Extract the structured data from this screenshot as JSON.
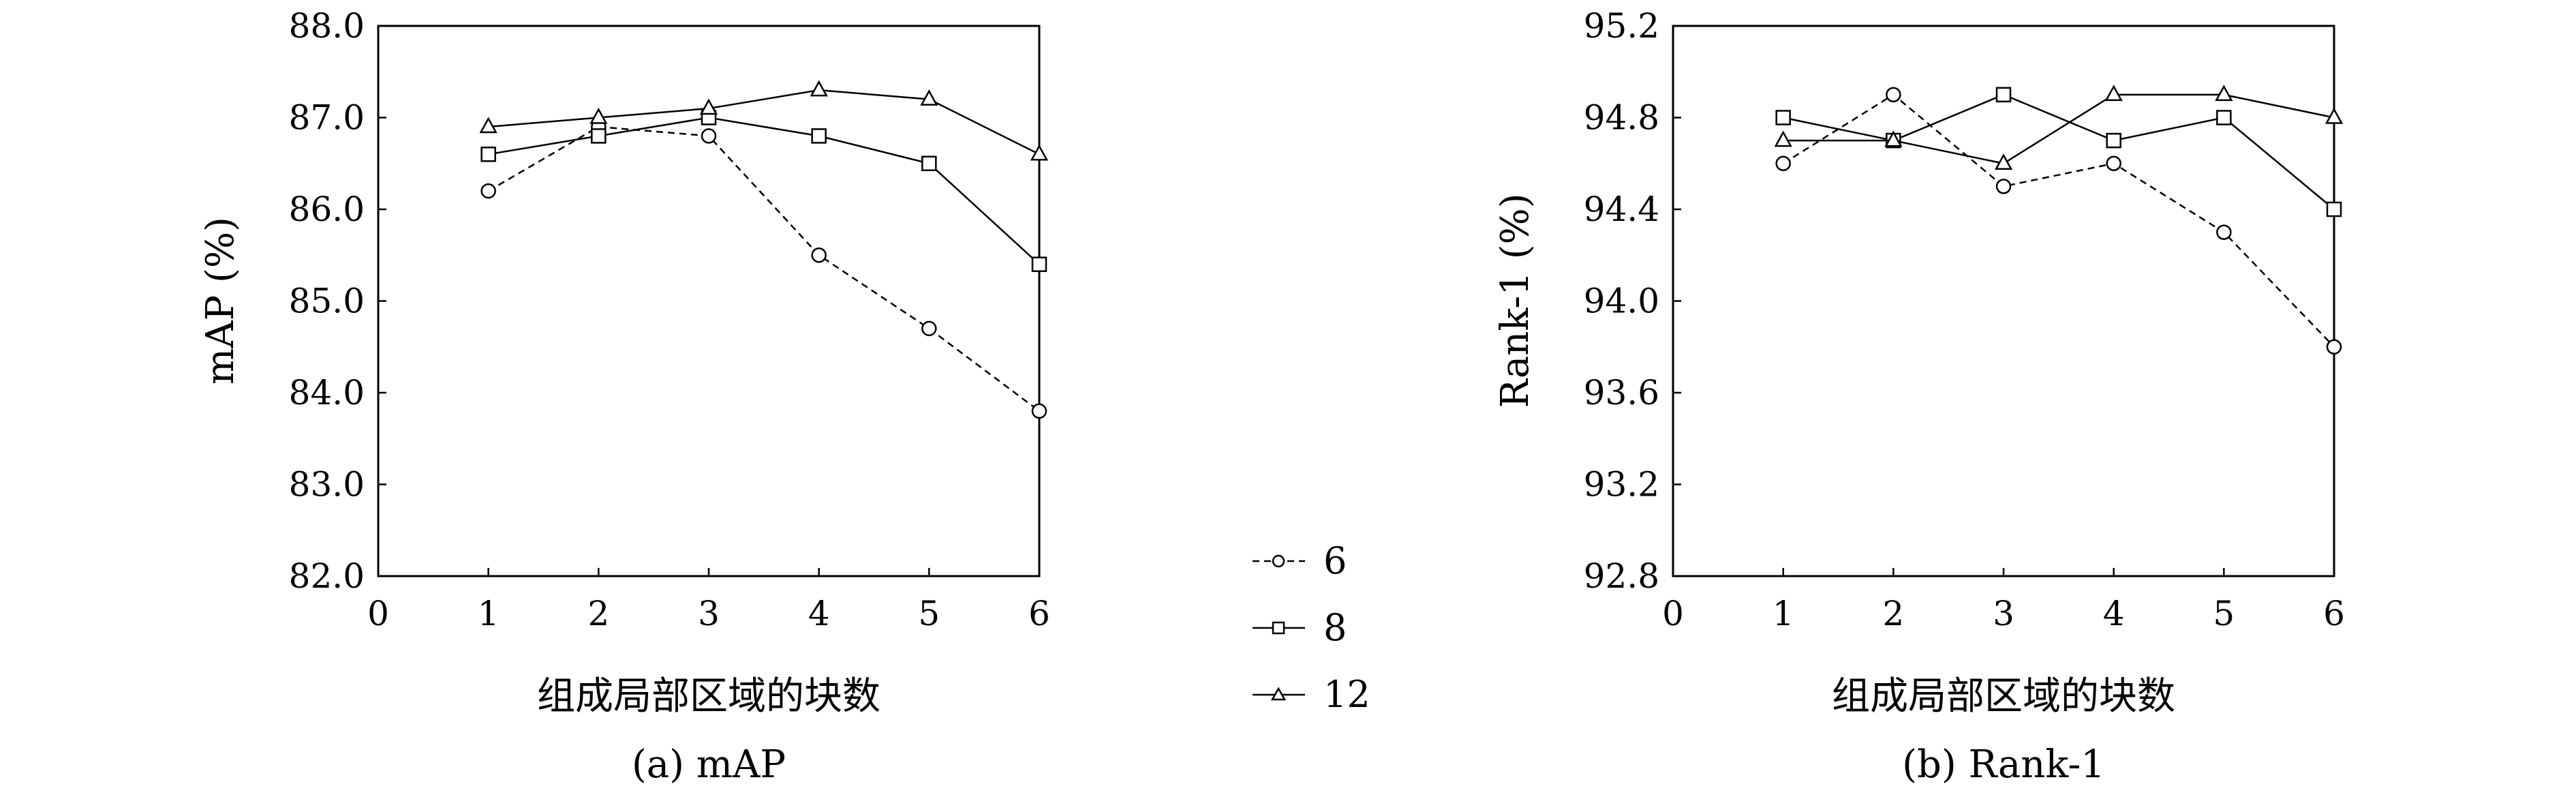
{
  "figure": {
    "legend": {
      "entries": [
        {
          "label": "6",
          "marker": "circle",
          "dash": "dashed"
        },
        {
          "label": "8",
          "marker": "square",
          "dash": "solid"
        },
        {
          "label": "12",
          "marker": "triangle",
          "dash": "solid"
        }
      ],
      "placement": "center, between panels"
    }
  },
  "chart_data": [
    {
      "type": "line",
      "caption": "(a) mAP",
      "xlabel": "组成局部区域的块数",
      "ylabel": "mAP (%)",
      "xlim": [
        0,
        6
      ],
      "ylim": [
        82.0,
        88.0
      ],
      "xticks": [
        "0",
        "1",
        "2",
        "3",
        "4",
        "5",
        "6"
      ],
      "yticks": [
        "82.0",
        "83.0",
        "84.0",
        "85.0",
        "86.0",
        "87.0",
        "88.0"
      ],
      "grid": false,
      "x": [
        1,
        2,
        3,
        4,
        5,
        6
      ],
      "series": [
        {
          "name": "6",
          "marker": "circle",
          "dash": "dashed",
          "values": [
            86.2,
            86.9,
            86.8,
            85.5,
            84.7,
            83.8
          ]
        },
        {
          "name": "8",
          "marker": "square",
          "dash": "solid",
          "values": [
            86.6,
            86.8,
            87.0,
            86.8,
            86.5,
            85.4
          ]
        },
        {
          "name": "12",
          "marker": "triangle",
          "dash": "solid",
          "values": [
            86.9,
            87.0,
            87.1,
            87.3,
            87.2,
            86.6
          ]
        }
      ]
    },
    {
      "type": "line",
      "caption": "(b) Rank-1",
      "xlabel": "组成局部区域的块数",
      "ylabel": "Rank-1 (%)",
      "xlim": [
        0,
        6
      ],
      "ylim": [
        92.8,
        95.2
      ],
      "xticks": [
        "0",
        "1",
        "2",
        "3",
        "4",
        "5",
        "6"
      ],
      "yticks": [
        "92.8",
        "93.2",
        "93.6",
        "94.0",
        "94.4",
        "94.8",
        "95.2"
      ],
      "grid": false,
      "x": [
        1,
        2,
        3,
        4,
        5,
        6
      ],
      "series": [
        {
          "name": "6",
          "marker": "circle",
          "dash": "dashed",
          "values": [
            94.6,
            94.9,
            94.5,
            94.6,
            94.3,
            93.8
          ]
        },
        {
          "name": "8",
          "marker": "square",
          "dash": "solid",
          "values": [
            94.8,
            94.7,
            94.9,
            94.7,
            94.8,
            94.4
          ]
        },
        {
          "name": "12",
          "marker": "triangle",
          "dash": "solid",
          "values": [
            94.7,
            94.7,
            94.6,
            94.9,
            94.9,
            94.8
          ]
        }
      ]
    }
  ]
}
